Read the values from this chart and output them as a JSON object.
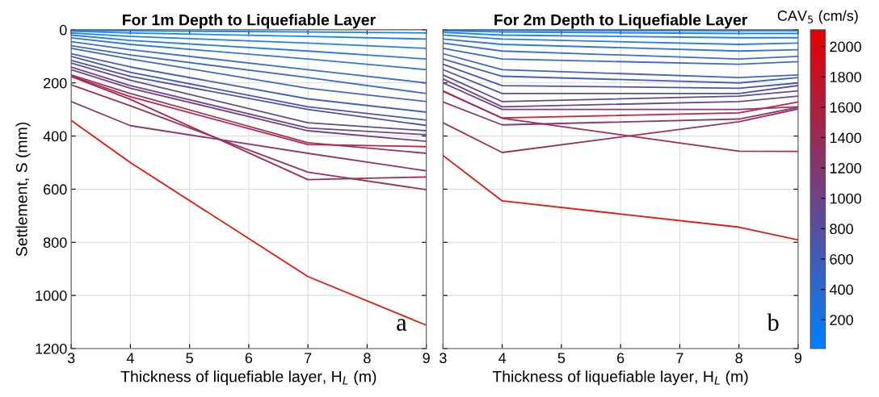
{
  "chart_data": [
    {
      "type": "line",
      "title": "For 1m Depth to Liquefiable Layer",
      "xlabel": "Thickness of liquefiable layer, H$_{L}$ (m)",
      "ylabel": "Settlement, S (mm)",
      "x": [
        3,
        4,
        7,
        9
      ],
      "xlim": [
        3,
        9
      ],
      "xticks": [
        3,
        4,
        5,
        6,
        7,
        8,
        9
      ],
      "ylim": [
        1200,
        0
      ],
      "yticks": [
        0,
        200,
        400,
        600,
        800,
        1000,
        1200
      ],
      "grid": true,
      "annotations": [
        "a"
      ],
      "series": [
        {
          "color": "#0a88fc",
          "values": [
            2,
            4,
            8,
            12
          ]
        },
        {
          "color": "#1585f5",
          "values": [
            5,
            12,
            25,
            35
          ]
        },
        {
          "color": "#2080ea",
          "values": [
            12,
            25,
            50,
            70
          ]
        },
        {
          "color": "#2a7de0",
          "values": [
            20,
            40,
            80,
            110
          ]
        },
        {
          "color": "#2f78d8",
          "values": [
            30,
            55,
            110,
            150
          ]
        },
        {
          "color": "#3a70cc",
          "values": [
            45,
            75,
            150,
            200
          ]
        },
        {
          "color": "#3c6cc8",
          "values": [
            60,
            95,
            180,
            240
          ]
        },
        {
          "color": "#4065c0",
          "values": [
            70,
            110,
            220,
            270
          ]
        },
        {
          "color": "#4660b8",
          "values": [
            90,
            140,
            260,
            310
          ]
        },
        {
          "color": "#4a55b0",
          "values": [
            100,
            160,
            290,
            340
          ]
        },
        {
          "color": "#5050a8",
          "values": [
            115,
            175,
            300,
            360
          ]
        },
        {
          "color": "#5e4c98",
          "values": [
            125,
            190,
            350,
            380
          ]
        },
        {
          "color": "#6a4890",
          "values": [
            140,
            210,
            370,
            395
          ]
        },
        {
          "color": "#7a4080",
          "values": [
            150,
            220,
            380,
            420
          ]
        },
        {
          "color": "#8a3a70",
          "values": [
            170,
            240,
            425,
            465
          ]
        },
        {
          "color": "#c8203a",
          "values": [
            174,
            252,
            432,
            440
          ]
        },
        {
          "color": "#a02a55",
          "values": [
            176,
            262,
            564,
            554
          ]
        },
        {
          "color": "#9a3060",
          "values": [
            207,
            286,
            536,
            602
          ]
        },
        {
          "color": "#8a3a6e",
          "values": [
            270,
            361,
            465,
            531
          ]
        },
        {
          "color": "#e8140f",
          "values": [
            341,
            500,
            929,
            1112
          ]
        }
      ]
    },
    {
      "type": "line",
      "title": "For 2m Depth to Liquefiable Layer",
      "xlabel": "Thickness of liquefiable layer, H$_{L}$ (m)",
      "x": [
        3,
        4,
        8,
        9
      ],
      "xlim": [
        3,
        9
      ],
      "xticks": [
        3,
        4,
        5,
        6,
        7,
        8,
        9
      ],
      "ylim": [
        1200,
        0
      ],
      "yticks": [
        0,
        200,
        400,
        600,
        800,
        1000,
        1200
      ],
      "tick_labels": "x",
      "grid": true,
      "annotations": [
        "b"
      ],
      "clabel": "CAV$_{5}$ (cm/s)",
      "clim": [
        10,
        2110
      ],
      "cticks": [
        200,
        400,
        600,
        800,
        1000,
        1200,
        1400,
        1600,
        1800,
        2000
      ],
      "colors": [
        "#0080ff",
        "#e60000"
      ],
      "series": [
        {
          "color": "#0a88fc",
          "values": [
            1,
            2,
            4,
            4
          ]
        },
        {
          "color": "#1585f5",
          "values": [
            4,
            8,
            14,
            14
          ]
        },
        {
          "color": "#2080ea",
          "values": [
            10,
            20,
            30,
            30
          ]
        },
        {
          "color": "#2a7de0",
          "values": [
            20,
            35,
            55,
            50
          ]
        },
        {
          "color": "#2f78d8",
          "values": [
            35,
            55,
            80,
            75
          ]
        },
        {
          "color": "#3a70cc",
          "values": [
            50,
            80,
            110,
            100
          ]
        },
        {
          "color": "#3c6cc8",
          "values": [
            70,
            110,
            130,
            120
          ]
        },
        {
          "color": "#4065c0",
          "values": [
            90,
            150,
            180,
            170
          ]
        },
        {
          "color": "#4660b8",
          "values": [
            110,
            175,
            200,
            180
          ]
        },
        {
          "color": "#4a55b0",
          "values": [
            130,
            210,
            220,
            200
          ]
        },
        {
          "color": "#5050a8",
          "values": [
            150,
            240,
            240,
            210
          ]
        },
        {
          "color": "#5e4c98",
          "values": [
            170,
            270,
            250,
            230
          ]
        },
        {
          "color": "#6a4890",
          "values": [
            185,
            290,
            270,
            250
          ]
        },
        {
          "color": "#7a4080",
          "values": [
            200,
            300,
            300,
            290
          ]
        },
        {
          "color": "#8a3a70",
          "values": [
            272,
            358,
            336,
            292
          ]
        },
        {
          "color": "#c8203a",
          "values": [
            232,
            332,
            313,
            272
          ]
        },
        {
          "color": "#a02a55",
          "values": [
            230,
            333,
            457,
            458
          ]
        },
        {
          "color": "#9a3060",
          "values": [
            350,
            462,
            346,
            298
          ]
        },
        {
          "color": "#e8140f",
          "values": [
            473,
            644,
            743,
            791
          ]
        }
      ]
    }
  ]
}
